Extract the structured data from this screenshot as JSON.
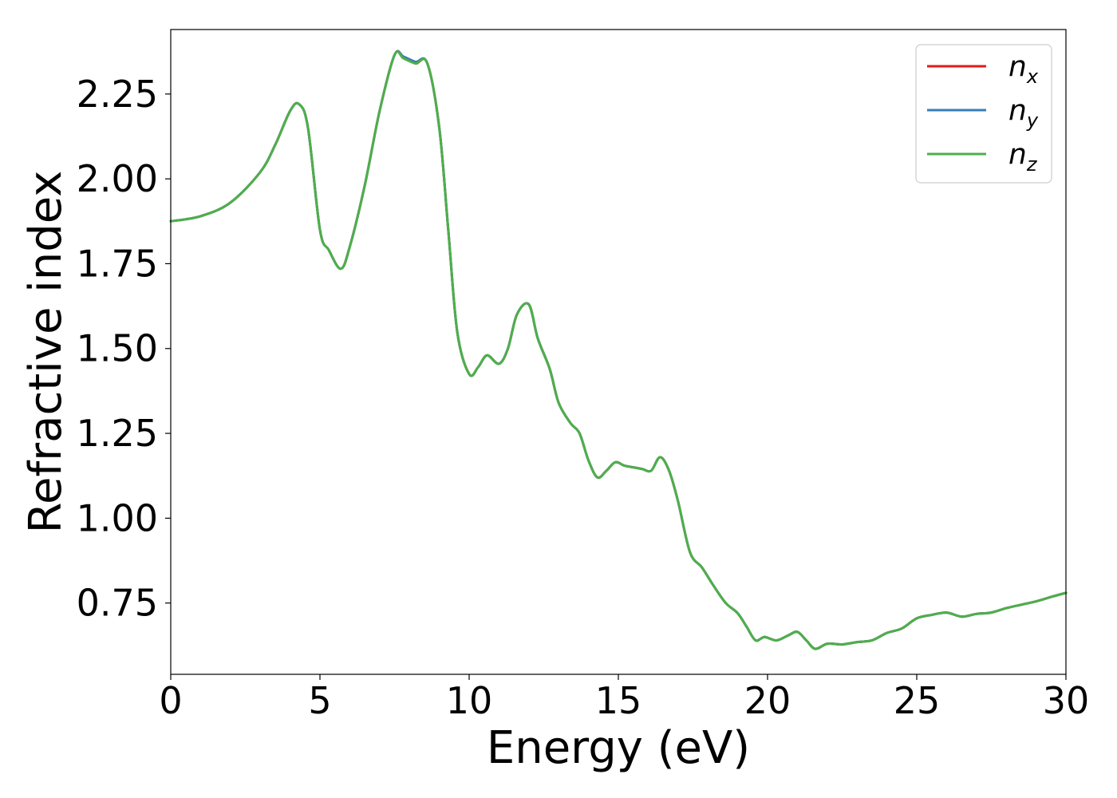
{
  "chart_data": {
    "type": "line",
    "title": "",
    "xlabel": "Energy (eV)",
    "ylabel": "Refractive index",
    "xlim": [
      0,
      30
    ],
    "ylim": [
      0.54,
      2.44
    ],
    "xticks": [
      0,
      5,
      10,
      15,
      20,
      25,
      30
    ],
    "xtick_labels": [
      "0",
      "5",
      "10",
      "15",
      "20",
      "25",
      "30"
    ],
    "yticks": [
      0.75,
      1.0,
      1.25,
      1.5,
      1.75,
      2.0,
      2.25
    ],
    "ytick_labels": [
      "0.75",
      "1.00",
      "1.25",
      "1.50",
      "1.75",
      "2.00",
      "2.25"
    ],
    "grid": false,
    "legend_position": "top-right",
    "x": [
      0,
      1,
      2,
      3,
      3.5,
      4,
      4.3,
      4.6,
      5,
      5.3,
      5.7,
      6,
      6.5,
      7,
      7.5,
      7.8,
      8.2,
      8.6,
      9,
      9.3,
      9.6,
      10,
      10.3,
      10.6,
      11,
      11.3,
      11.6,
      12,
      12.3,
      12.7,
      13,
      13.4,
      13.7,
      14,
      14.3,
      14.6,
      14.9,
      15.2,
      15.5,
      15.8,
      16.1,
      16.4,
      16.7,
      17,
      17.4,
      17.8,
      18.2,
      18.6,
      19,
      19.3,
      19.6,
      19.9,
      20.3,
      20.7,
      21,
      21.3,
      21.6,
      22,
      22.5,
      23,
      23.5,
      24,
      24.5,
      25,
      25.5,
      26,
      26.5,
      27,
      27.5,
      28,
      28.5,
      29,
      29.5,
      30
    ],
    "series": [
      {
        "name": "n_x",
        "label_base": "n",
        "label_sub": "x",
        "color": "#e41a1c",
        "values": [
          1.875,
          1.89,
          1.93,
          2.02,
          2.1,
          2.2,
          2.22,
          2.15,
          1.85,
          1.79,
          1.735,
          1.8,
          1.98,
          2.2,
          2.365,
          2.36,
          2.34,
          2.34,
          2.15,
          1.85,
          1.55,
          1.425,
          1.445,
          1.48,
          1.455,
          1.5,
          1.6,
          1.63,
          1.53,
          1.44,
          1.34,
          1.28,
          1.25,
          1.17,
          1.12,
          1.14,
          1.165,
          1.155,
          1.15,
          1.145,
          1.14,
          1.18,
          1.14,
          1.05,
          0.9,
          0.855,
          0.8,
          0.75,
          0.72,
          0.68,
          0.64,
          0.65,
          0.64,
          0.655,
          0.665,
          0.64,
          0.615,
          0.63,
          0.628,
          0.635,
          0.64,
          0.662,
          0.675,
          0.705,
          0.715,
          0.722,
          0.71,
          0.718,
          0.722,
          0.735,
          0.745,
          0.755,
          0.768,
          0.78
        ]
      },
      {
        "name": "n_y",
        "label_base": "n",
        "label_sub": "y",
        "color": "#377eb8",
        "values": [
          1.875,
          1.89,
          1.93,
          2.02,
          2.1,
          2.2,
          2.22,
          2.15,
          1.85,
          1.79,
          1.735,
          1.8,
          1.98,
          2.2,
          2.365,
          2.36,
          2.345,
          2.34,
          2.15,
          1.85,
          1.55,
          1.425,
          1.445,
          1.48,
          1.455,
          1.5,
          1.6,
          1.63,
          1.53,
          1.44,
          1.34,
          1.28,
          1.25,
          1.17,
          1.12,
          1.14,
          1.165,
          1.155,
          1.15,
          1.145,
          1.14,
          1.18,
          1.14,
          1.05,
          0.9,
          0.855,
          0.8,
          0.75,
          0.72,
          0.68,
          0.64,
          0.65,
          0.64,
          0.655,
          0.665,
          0.64,
          0.615,
          0.63,
          0.628,
          0.635,
          0.64,
          0.662,
          0.675,
          0.705,
          0.715,
          0.722,
          0.71,
          0.718,
          0.722,
          0.735,
          0.745,
          0.755,
          0.768,
          0.78
        ]
      },
      {
        "name": "n_z",
        "label_base": "n",
        "label_sub": "z",
        "color": "#4daf4a",
        "values": [
          1.875,
          1.89,
          1.93,
          2.02,
          2.1,
          2.2,
          2.22,
          2.15,
          1.85,
          1.79,
          1.735,
          1.8,
          1.98,
          2.2,
          2.365,
          2.355,
          2.34,
          2.34,
          2.15,
          1.85,
          1.55,
          1.425,
          1.445,
          1.48,
          1.455,
          1.5,
          1.6,
          1.63,
          1.53,
          1.44,
          1.34,
          1.28,
          1.25,
          1.17,
          1.12,
          1.14,
          1.165,
          1.155,
          1.15,
          1.145,
          1.14,
          1.18,
          1.14,
          1.05,
          0.9,
          0.855,
          0.8,
          0.75,
          0.72,
          0.68,
          0.64,
          0.65,
          0.64,
          0.655,
          0.665,
          0.64,
          0.615,
          0.63,
          0.628,
          0.635,
          0.64,
          0.662,
          0.675,
          0.705,
          0.715,
          0.722,
          0.71,
          0.718,
          0.722,
          0.735,
          0.745,
          0.755,
          0.768,
          0.78
        ]
      }
    ]
  }
}
